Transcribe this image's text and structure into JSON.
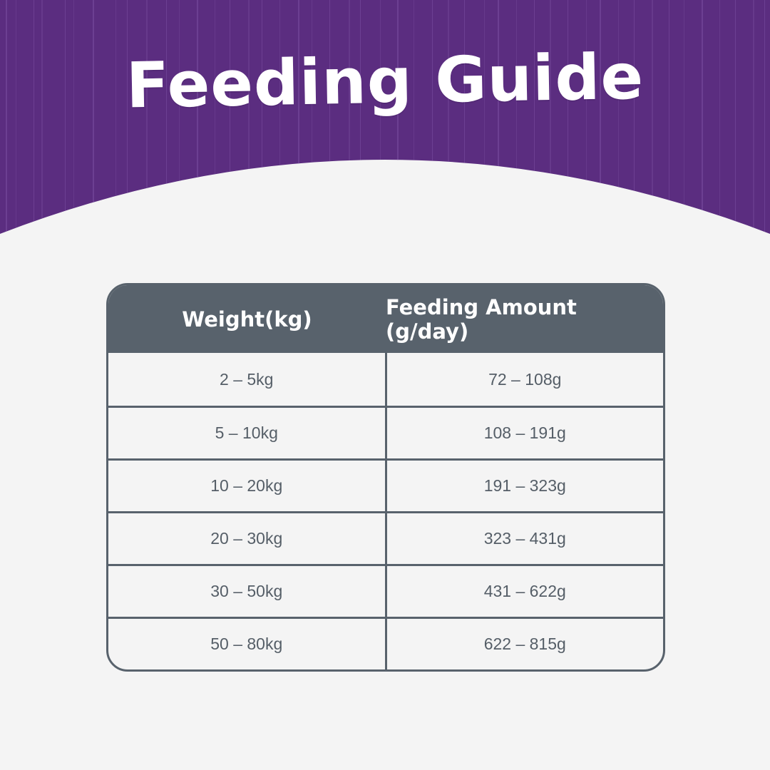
{
  "title": "Feeding Guide",
  "colors": {
    "header_purple": "#5b2d80",
    "header_stripe": "#7a4fa0",
    "table_header": "#58626c",
    "background": "#f4f4f4",
    "text": "#555e67"
  },
  "table": {
    "headers": [
      "Weight(kg)",
      "Feeding Amount (g/day)"
    ],
    "rows": [
      [
        "2 – 5kg",
        "72 – 108g"
      ],
      [
        "5 – 10kg",
        "108 – 191g"
      ],
      [
        "10 – 20kg",
        "191 – 323g"
      ],
      [
        "20 – 30kg",
        "323 – 431g"
      ],
      [
        "30 – 50kg",
        "431 – 622g"
      ],
      [
        "50 – 80kg",
        "622 – 815g"
      ]
    ]
  }
}
